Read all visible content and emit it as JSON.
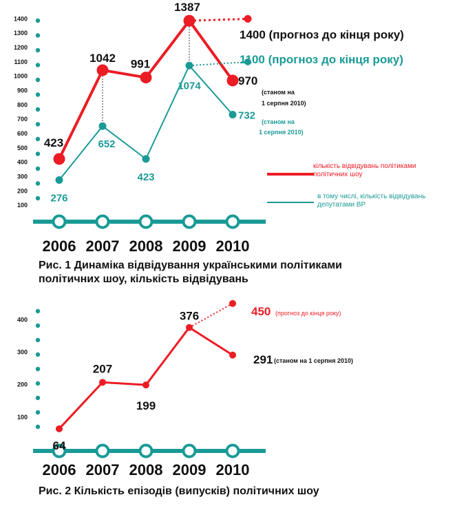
{
  "colors": {
    "red": "#ec1c24",
    "teal": "#1a9a96",
    "dark": "#111111"
  },
  "chart_data": [
    {
      "type": "line",
      "caption": "Рис. 1 Динаміка відвідування українськими політиками політичних шоу, кількість відвідувань",
      "x_categories": [
        "2006",
        "2007",
        "2008",
        "2009",
        "2010"
      ],
      "y_ticks": [
        100,
        200,
        300,
        400,
        500,
        600,
        700,
        800,
        900,
        1000,
        1100,
        1200,
        1300,
        1400
      ],
      "ylim": [
        0,
        1450
      ],
      "series": [
        {
          "name": "кількість відвідувань політиками політичних шоу",
          "color": "#ec1c24",
          "values": [
            423,
            1042,
            991,
            1387,
            970
          ],
          "labels": [
            "423",
            "1042",
            "991",
            "1387",
            "970"
          ],
          "forecast_value": 1400,
          "forecast_label": "1400 (прогноз до кінця року)",
          "last_note": [
            "(станом на",
            "1 серпня 2010)"
          ]
        },
        {
          "name": "в тому числі, кількість відвідувань депутатами ВР",
          "color": "#1a9a96",
          "values": [
            276,
            652,
            423,
            1074,
            732
          ],
          "labels": [
            "276",
            "652",
            "423",
            "1074",
            "732"
          ],
          "forecast_value": 1100,
          "forecast_label": "1100 (прогноз до кінця року)",
          "last_note": [
            "(станом на",
            "1 серпня 2010)"
          ]
        }
      ],
      "legend": [
        {
          "lines": [
            "кількість відвідувань політиками",
            "політичних шоу"
          ],
          "color": "#ec1c24"
        },
        {
          "lines": [
            "в тому числі, кількість відвідувань",
            "депутатами ВР"
          ],
          "color": "#1a9a96"
        }
      ]
    },
    {
      "type": "line",
      "caption": "Рис. 2 Кількість епізодів (випусків) політичних шоу",
      "x_categories": [
        "2006",
        "2007",
        "2008",
        "2009",
        "2010"
      ],
      "y_ticks": [
        100,
        200,
        300,
        400
      ],
      "ylim": [
        0,
        450
      ],
      "series": [
        {
          "color": "#ec1c24",
          "values": [
            64,
            207,
            199,
            376,
            291
          ],
          "labels": [
            "64",
            "207",
            "199",
            "376",
            "291"
          ],
          "forecast_value": 450,
          "forecast_label": "450",
          "forecast_note": "(прогноз до кінця року)",
          "last_note": [
            "(станом на 1 серпня 2010)"
          ]
        }
      ]
    }
  ]
}
